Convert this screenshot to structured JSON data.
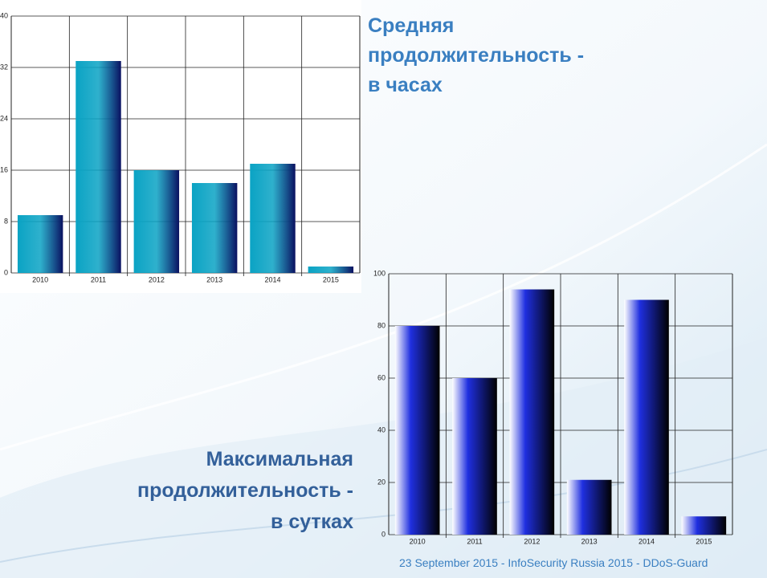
{
  "chart_data": [
    {
      "type": "bar",
      "title": [
        "Средняя",
        "продолжительность -",
        "в часах"
      ],
      "categories": [
        "2010",
        "2011",
        "2012",
        "2013",
        "2014",
        "2015"
      ],
      "values": [
        9,
        33,
        16,
        14,
        17,
        1
      ],
      "color": "#0aa3c4",
      "ylim": [
        0,
        40
      ],
      "yticks": [
        0,
        8,
        16,
        24,
        32,
        40
      ],
      "grid": true
    },
    {
      "type": "bar",
      "title": [
        "Максимальная",
        "продолжительность -",
        "в сутках"
      ],
      "categories": [
        "2010",
        "2011",
        "2012",
        "2013",
        "2014",
        "2015"
      ],
      "values": [
        80,
        60,
        94,
        21,
        90,
        7
      ],
      "color": "#1f2fe0",
      "ylim": [
        0,
        100
      ],
      "yticks": [
        0,
        20,
        40,
        60,
        80,
        100
      ],
      "grid": true
    }
  ],
  "footer": "23 September 2015 - InfoSecurity Russia 2015 - DDoS-Guard"
}
